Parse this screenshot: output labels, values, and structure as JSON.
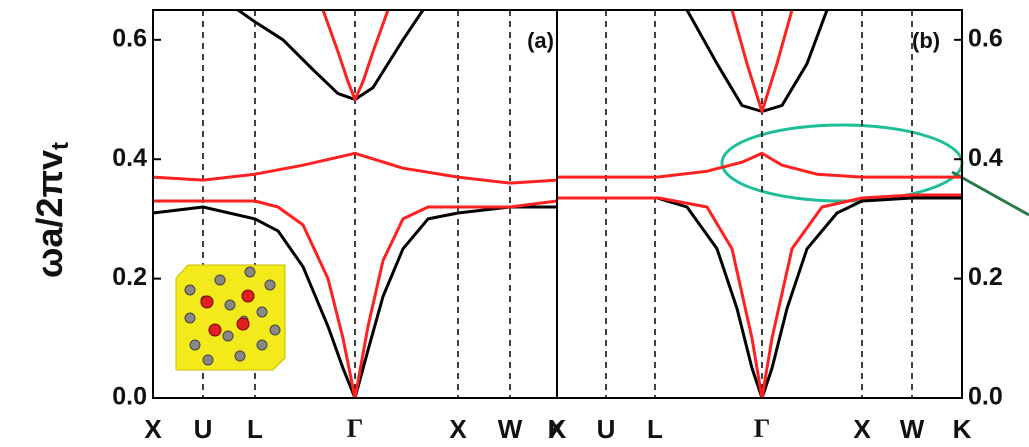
{
  "chart_data": [
    {
      "type": "line",
      "title": "(a)",
      "ylabel": "ωa/2πv",
      "ylabel_sub": "t",
      "ylim": [
        0,
        0.65
      ],
      "yticks": [
        {
          "value": 0,
          "label": "0.0"
        },
        0.2,
        0.4,
        0.6
      ],
      "xlim": [
        0,
        8.08
      ],
      "xticks": [
        {
          "value": 0,
          "label": "X"
        },
        {
          "value": 1,
          "label": "U"
        },
        {
          "value": 2.04,
          "label": "L"
        },
        {
          "value": 4.04,
          "label": "Γ"
        },
        {
          "value": 6.1,
          "label": "X"
        },
        {
          "value": 7.14,
          "label": "W"
        },
        {
          "value": 8.08,
          "label": "K"
        }
      ],
      "series": [
        {
          "color": "#000000",
          "x": [
            0,
            1,
            2.04,
            2.5,
            3.0,
            3.5,
            3.8,
            4.04,
            4.3,
            4.6,
            5.0,
            5.5,
            6.1,
            7.14,
            8.08
          ],
          "values": [
            0.31,
            0.32,
            0.3,
            0.28,
            0.22,
            0.12,
            0.05,
            0.0,
            0.08,
            0.17,
            0.25,
            0.3,
            0.31,
            0.32,
            0.32
          ]
        },
        {
          "color": "#ff2020",
          "x": [
            0,
            1,
            2.04,
            2.5,
            3.0,
            3.5,
            3.8,
            4.04,
            4.3,
            4.6,
            5.0,
            5.5,
            6.1,
            7.14,
            8.08
          ],
          "values": [
            0.33,
            0.33,
            0.33,
            0.32,
            0.29,
            0.2,
            0.1,
            0.0,
            0.12,
            0.23,
            0.3,
            0.32,
            0.32,
            0.32,
            0.33
          ]
        },
        {
          "color": "#ff2020",
          "x": [
            0,
            1,
            2.04,
            3,
            4.04,
            5,
            6.1,
            7.14,
            8.08
          ],
          "values": [
            0.37,
            0.365,
            0.375,
            0.39,
            0.41,
            0.385,
            0.37,
            0.36,
            0.365
          ]
        },
        {
          "color": "#000000",
          "x": [
            1.7,
            2.04,
            2.6,
            3.2,
            3.7,
            4.04,
            4.4,
            5.0,
            5.4
          ],
          "values": [
            0.65,
            0.63,
            0.6,
            0.55,
            0.51,
            0.5,
            0.52,
            0.6,
            0.65
          ]
        },
        {
          "color": "#ff2020",
          "x": [
            3.4,
            3.7,
            3.9,
            4.04,
            4.2,
            4.4,
            4.7
          ],
          "values": [
            0.65,
            0.58,
            0.53,
            0.5,
            0.53,
            0.58,
            0.65
          ]
        }
      ]
    },
    {
      "type": "line",
      "title": "(b)",
      "ylim": [
        0,
        0.65
      ],
      "yticks": [
        {
          "value": 0,
          "label": "0.0"
        },
        0.2,
        0.4,
        0.6
      ],
      "xlim": [
        0,
        8.1
      ],
      "xticks": [
        {
          "value": 0,
          "label": "X"
        },
        {
          "value": 0.98,
          "label": "U"
        },
        {
          "value": 1.96,
          "label": "L"
        },
        {
          "value": 4.1,
          "label": "Γ"
        },
        {
          "value": 6.1,
          "label": "X"
        },
        {
          "value": 7.1,
          "label": "W"
        },
        {
          "value": 8.1,
          "label": "K"
        }
      ],
      "series": [
        {
          "color": "#000000",
          "x": [
            0,
            2,
            2.6,
            3.2,
            3.6,
            3.9,
            4.1,
            4.3,
            4.6,
            5.0,
            5.6,
            6.1,
            7.1,
            8.1
          ],
          "values": [
            0.335,
            0.335,
            0.32,
            0.25,
            0.15,
            0.05,
            0.0,
            0.05,
            0.15,
            0.25,
            0.31,
            0.33,
            0.335,
            0.335
          ]
        },
        {
          "color": "#ff2020",
          "x": [
            0,
            2.04,
            3.0,
            3.5,
            3.9,
            4.1,
            4.3,
            4.7,
            5.3,
            6.1,
            7.1,
            8.1
          ],
          "values": [
            0.335,
            0.335,
            0.32,
            0.25,
            0.1,
            0.0,
            0.1,
            0.25,
            0.32,
            0.335,
            0.34,
            0.34
          ]
        },
        {
          "color": "#ff2020",
          "x": [
            0,
            2,
            3,
            3.7,
            4.1,
            4.5,
            5.2,
            6.1,
            8.1
          ],
          "values": [
            0.37,
            0.37,
            0.38,
            0.395,
            0.41,
            0.39,
            0.375,
            0.37,
            0.37
          ]
        },
        {
          "color": "#000000",
          "x": [
            2.6,
            3.2,
            3.7,
            4.1,
            4.5,
            5.0,
            5.4
          ],
          "values": [
            0.65,
            0.56,
            0.49,
            0.48,
            0.49,
            0.56,
            0.65
          ]
        },
        {
          "color": "#ff2020",
          "x": [
            3.5,
            3.8,
            4.1,
            4.4,
            4.7
          ],
          "values": [
            0.65,
            0.56,
            0.48,
            0.56,
            0.65
          ]
        }
      ]
    }
  ]
}
